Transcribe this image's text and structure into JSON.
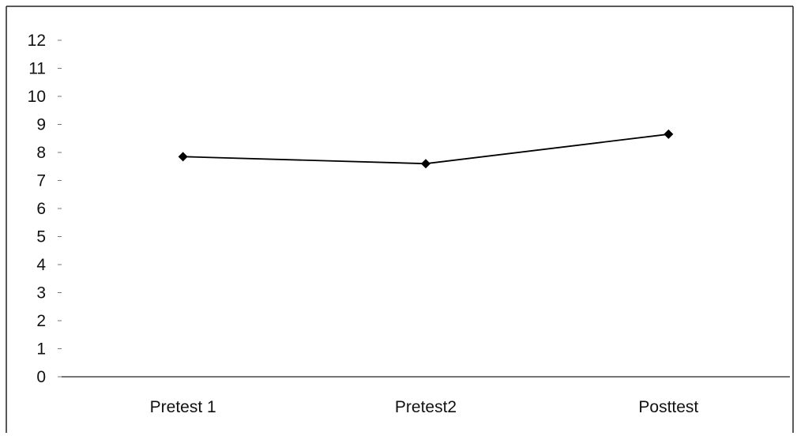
{
  "chart_data": {
    "type": "line",
    "title": "",
    "xlabel": "",
    "ylabel": "",
    "categories": [
      "Pretest 1",
      "Pretest2",
      "Posttest"
    ],
    "series": [
      {
        "values": [
          7.85,
          7.6,
          8.65
        ],
        "color": "#000000",
        "marker": "diamond"
      }
    ],
    "ylim": [
      0,
      12
    ],
    "yticks": [
      "0",
      "1",
      "2",
      "3",
      "4",
      "5",
      "6",
      "7",
      "8",
      "9",
      "10",
      "11",
      "12"
    ],
    "grid": false,
    "legend": "none"
  }
}
